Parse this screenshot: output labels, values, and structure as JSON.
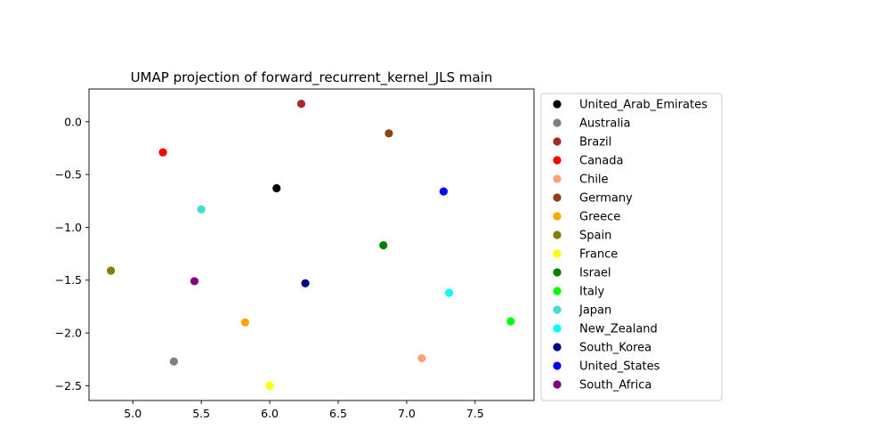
{
  "chart_data": {
    "type": "scatter",
    "title": "UMAP projection of forward_recurrent_kernel_JLS main",
    "xlabel": "",
    "ylabel": "",
    "xlim": [
      4.68,
      7.93
    ],
    "ylim": [
      -2.64,
      0.31
    ],
    "xticks": [
      5.0,
      5.5,
      6.0,
      6.5,
      7.0,
      7.5
    ],
    "xtick_labels": [
      "5.0",
      "5.5",
      "6.0",
      "6.5",
      "7.0",
      "7.5"
    ],
    "yticks": [
      0.0,
      -0.5,
      -1.0,
      -1.5,
      -2.0,
      -2.5
    ],
    "ytick_labels": [
      "0.0",
      "−0.5",
      "−1.0",
      "−1.5",
      "−2.0",
      "−2.5"
    ],
    "grid": false,
    "legend_position": "outside-right",
    "series": [
      {
        "name": "United_Arab_Emirates",
        "color": "#000000",
        "x": 6.05,
        "y": -0.63
      },
      {
        "name": "Australia",
        "color": "#808080",
        "x": 5.3,
        "y": -2.27
      },
      {
        "name": "Brazil",
        "color": "#a52a2a",
        "x": 6.23,
        "y": 0.17
      },
      {
        "name": "Canada",
        "color": "#ff0000",
        "x": 5.22,
        "y": -0.29
      },
      {
        "name": "Chile",
        "color": "#ffa07a",
        "x": 7.11,
        "y": -2.24
      },
      {
        "name": "Germany",
        "color": "#8b4513",
        "x": 6.87,
        "y": -0.11
      },
      {
        "name": "Greece",
        "color": "#ffa500",
        "x": 5.82,
        "y": -1.9
      },
      {
        "name": "Spain",
        "color": "#808000",
        "x": 4.84,
        "y": -1.41
      },
      {
        "name": "France",
        "color": "#ffff00",
        "x": 6.0,
        "y": -2.5
      },
      {
        "name": "Israel",
        "color": "#008000",
        "x": 6.83,
        "y": -1.17
      },
      {
        "name": "Italy",
        "color": "#00ff00",
        "x": 7.76,
        "y": -1.89
      },
      {
        "name": "Japan",
        "color": "#40e0d0",
        "x": 5.5,
        "y": -0.83
      },
      {
        "name": "New_Zealand",
        "color": "#00ffff",
        "x": 7.31,
        "y": -1.62
      },
      {
        "name": "South_Korea",
        "color": "#000080",
        "x": 6.26,
        "y": -1.53
      },
      {
        "name": "United_States",
        "color": "#0000ff",
        "x": 7.27,
        "y": -0.66
      },
      {
        "name": "South_Africa",
        "color": "#800080",
        "x": 5.45,
        "y": -1.51
      }
    ]
  }
}
